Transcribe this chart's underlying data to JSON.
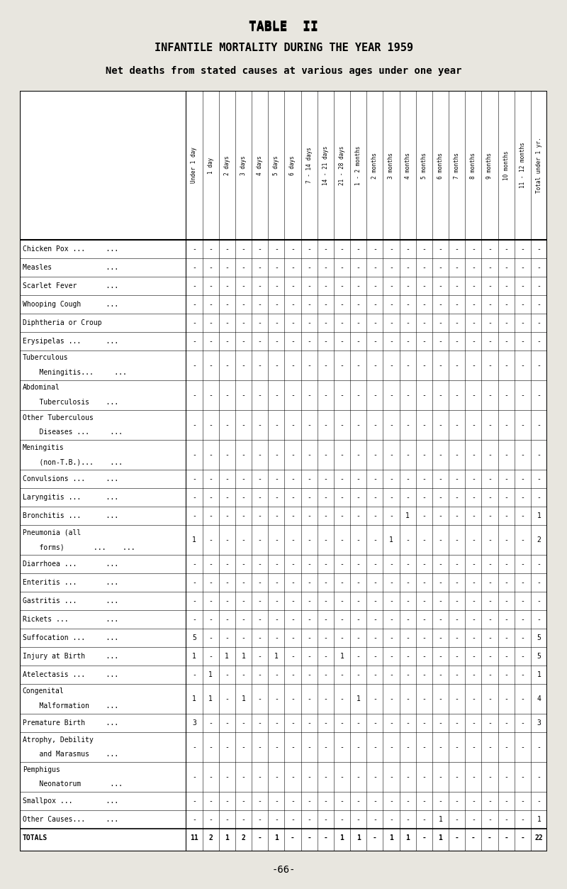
{
  "title1": "TABLE  II",
  "title2": "INFANTILE MORTALITY DURING THE YEAR 1959",
  "title3": "Net deaths from stated causes at various ages under one year",
  "bg_color": "#e8e6df",
  "col_headers": [
    "Under 1 day",
    "1 day",
    "2 days",
    "3 days",
    "4 days",
    "5 days",
    "6 days",
    "7 - 14 days",
    "14 - 21 days",
    "21 - 28 days",
    "1 - 2 months",
    "2 months",
    "3 months",
    "4 months",
    "5 months",
    "6 months",
    "7 months",
    "8 months",
    "9 months",
    "10 months",
    "11 - 12 months",
    "Total under 1 yr."
  ],
  "row_labels": [
    [
      "Chicken Pox ...",
      "        ..."
    ],
    [
      "Measles",
      "        ..."
    ],
    [
      "Scarlet Fever",
      "        ..."
    ],
    [
      "Whooping Cough",
      "        ..."
    ],
    [
      "Diphtheria or Croup",
      ""
    ],
    [
      "Erysipelas ...",
      "        ..."
    ],
    [
      "Tuberculous",
      "    Meningitis...",
      "        ..."
    ],
    [
      "Abdominal",
      "    Tuberculosis",
      "        ..."
    ],
    [
      "Other Tuberculous",
      "    Diseases ...",
      "        ..."
    ],
    [
      "Meningitis",
      "    (non-T.B.)...",
      "        ..."
    ],
    [
      "Convulsions ...",
      "        ..."
    ],
    [
      "Laryngitis ...",
      "        ..."
    ],
    [
      "Bronchitis ...",
      "        ..."
    ],
    [
      "Pneumonia (all",
      "    forms)",
      "        ..."
    ],
    [
      "Diarrhoea ...",
      "        ..."
    ],
    [
      "Enteritis ...",
      "        ..."
    ],
    [
      "Gastritis ...",
      "        ..."
    ],
    [
      "Rickets ...",
      "        ..."
    ],
    [
      "Suffocation ...",
      "        ..."
    ],
    [
      "Injury at Birth",
      "        ..."
    ],
    [
      "Atelectasis ...",
      "        ..."
    ],
    [
      "Congenital",
      "    Malformation",
      "        ..."
    ],
    [
      "Premature Birth",
      "        ..."
    ],
    [
      "Atrophy, Debility",
      "    and Marasmus",
      "        ..."
    ],
    [
      "Pemphigus",
      "    Neonatorum",
      "        ..."
    ],
    [
      "Smallpox ...",
      "        ..."
    ],
    [
      "Other Causes...",
      "        ..."
    ],
    [
      "TOTALS",
      ""
    ]
  ],
  "row_display": [
    "Chicken Pox ...     ...",
    "Measles             ...",
    "Scarlet Fever       ...",
    "Whooping Cough      ...",
    "Diphtheria or Croup",
    "Erysipelas ...      ...",
    "Tuberculous|    Meningitis...     ...",
    "Abdominal|    Tuberculosis    ...",
    "Other Tuberculous|    Diseases ...     ...",
    "Meningitis|    (non-T.B.)...    ...",
    "Convulsions ...     ...",
    "Laryngitis ...      ...",
    "Bronchitis ...      ...",
    "Pneumonia (all|    forms)       ...    ...",
    "Diarrhoea ...       ...",
    "Enteritis ...       ...",
    "Gastritis ...       ...",
    "Rickets ...         ...",
    "Suffocation ...     ...",
    "Injury at Birth     ...",
    "Atelectasis ...     ...",
    "Congenital|    Malformation    ...",
    "Premature Birth     ...",
    "Atrophy, Debility|    and Marasmus    ...",
    "Pemphigus|    Neonatorum       ...",
    "Smallpox ...        ...",
    "Other Causes...     ...",
    "TOTALS"
  ],
  "data": [
    [
      "-",
      "-",
      "-",
      "-",
      "-",
      "-",
      "-",
      "-",
      "-",
      "-",
      "-",
      "-",
      "-",
      "-",
      "-",
      "-",
      "-",
      "-",
      "-",
      "-",
      "-",
      "-"
    ],
    [
      "-",
      "-",
      "-",
      "-",
      "-",
      "-",
      "-",
      "-",
      "-",
      "-",
      "-",
      "-",
      "-",
      "-",
      "-",
      "-",
      "-",
      "-",
      "-",
      "-",
      "-",
      "-"
    ],
    [
      "-",
      "-",
      "-",
      "-",
      "-",
      "-",
      "-",
      "-",
      "-",
      "-",
      "-",
      "-",
      "-",
      "-",
      "-",
      "-",
      "-",
      "-",
      "-",
      "-",
      "-",
      "-"
    ],
    [
      "-",
      "-",
      "-",
      "-",
      "-",
      "-",
      "-",
      "-",
      "-",
      "-",
      "-",
      "-",
      "-",
      "-",
      "-",
      "-",
      "-",
      "-",
      "-",
      "-",
      "-",
      "-"
    ],
    [
      "-",
      "-",
      "-",
      "-",
      "-",
      "-",
      "-",
      "-",
      "-",
      "-",
      "-",
      "-",
      "-",
      "-",
      "-",
      "-",
      "-",
      "-",
      "-",
      "-",
      "-",
      "-"
    ],
    [
      "-",
      "-",
      "-",
      "-",
      "-",
      "-",
      "-",
      "-",
      "-",
      "-",
      "-",
      "-",
      "-",
      "-",
      "-",
      "-",
      "-",
      "-",
      "-",
      "-",
      "-",
      "-"
    ],
    [
      "-",
      "-",
      "-",
      "-",
      "-",
      "-",
      "-",
      "-",
      "-",
      "-",
      "-",
      "-",
      "-",
      "-",
      "-",
      "-",
      "-",
      "-",
      "-",
      "-",
      "-",
      "-"
    ],
    [
      "-",
      "-",
      "-",
      "-",
      "-",
      "-",
      "-",
      "-",
      "-",
      "-",
      "-",
      "-",
      "-",
      "-",
      "-",
      "-",
      "-",
      "-",
      "-",
      "-",
      "-",
      "-"
    ],
    [
      "-",
      "-",
      "-",
      "-",
      "-",
      "-",
      "-",
      "-",
      "-",
      "-",
      "-",
      "-",
      "-",
      "-",
      "-",
      "-",
      "-",
      "-",
      "-",
      "-",
      "-",
      "-"
    ],
    [
      "-",
      "-",
      "-",
      "-",
      "-",
      "-",
      "-",
      "-",
      "-",
      "-",
      "-",
      "-",
      "-",
      "-",
      "-",
      "-",
      "-",
      "-",
      "-",
      "-",
      "-",
      "-"
    ],
    [
      "-",
      "-",
      "-",
      "-",
      "-",
      "-",
      "-",
      "-",
      "-",
      "-",
      "-",
      "-",
      "-",
      "-",
      "-",
      "-",
      "-",
      "-",
      "-",
      "-",
      "-",
      "-"
    ],
    [
      "-",
      "-",
      "-",
      "-",
      "-",
      "-",
      "-",
      "-",
      "-",
      "-",
      "-",
      "-",
      "-",
      "-",
      "-",
      "-",
      "-",
      "-",
      "-",
      "-",
      "-",
      "-"
    ],
    [
      "-",
      "-",
      "-",
      "-",
      "-",
      "-",
      "-",
      "-",
      "-",
      "-",
      "-",
      "-",
      "-",
      "1",
      "-",
      "-",
      "-",
      "-",
      "-",
      "-",
      "-",
      "1"
    ],
    [
      "1",
      "-",
      "-",
      "-",
      "-",
      "-",
      "-",
      "-",
      "-",
      "-",
      "-",
      "-",
      "1",
      "-",
      "-",
      "-",
      "-",
      "-",
      "-",
      "-",
      "-",
      "2"
    ],
    [
      "-",
      "-",
      "-",
      "-",
      "-",
      "-",
      "-",
      "-",
      "-",
      "-",
      "-",
      "-",
      "-",
      "-",
      "-",
      "-",
      "-",
      "-",
      "-",
      "-",
      "-",
      "-"
    ],
    [
      "-",
      "-",
      "-",
      "-",
      "-",
      "-",
      "-",
      "-",
      "-",
      "-",
      "-",
      "-",
      "-",
      "-",
      "-",
      "-",
      "-",
      "-",
      "-",
      "-",
      "-",
      "-"
    ],
    [
      "-",
      "-",
      "-",
      "-",
      "-",
      "-",
      "-",
      "-",
      "-",
      "-",
      "-",
      "-",
      "-",
      "-",
      "-",
      "-",
      "-",
      "-",
      "-",
      "-",
      "-",
      "-"
    ],
    [
      "-",
      "-",
      "-",
      "-",
      "-",
      "-",
      "-",
      "-",
      "-",
      "-",
      "-",
      "-",
      "-",
      "-",
      "-",
      "-",
      "-",
      "-",
      "-",
      "-",
      "-",
      "-"
    ],
    [
      "5",
      "-",
      "-",
      "-",
      "-",
      "-",
      "-",
      "-",
      "-",
      "-",
      "-",
      "-",
      "-",
      "-",
      "-",
      "-",
      "-",
      "-",
      "-",
      "-",
      "-",
      "5"
    ],
    [
      "1",
      "-",
      "1",
      "1",
      "-",
      "1",
      "-",
      "-",
      "-",
      "1",
      "-",
      "-",
      "-",
      "-",
      "-",
      "-",
      "-",
      "-",
      "-",
      "-",
      "-",
      "5"
    ],
    [
      "-",
      "1",
      "-",
      "-",
      "-",
      "-",
      "-",
      "-",
      "-",
      "-",
      "-",
      "-",
      "-",
      "-",
      "-",
      "-",
      "-",
      "-",
      "-",
      "-",
      "-",
      "1"
    ],
    [
      "1",
      "1",
      "-",
      "1",
      "-",
      "-",
      "-",
      "-",
      "-",
      "-",
      "1",
      "-",
      "-",
      "-",
      "-",
      "-",
      "-",
      "-",
      "-",
      "-",
      "-",
      "4"
    ],
    [
      "3",
      "-",
      "-",
      "-",
      "-",
      "-",
      "-",
      "-",
      "-",
      "-",
      "-",
      "-",
      "-",
      "-",
      "-",
      "-",
      "-",
      "-",
      "-",
      "-",
      "-",
      "3"
    ],
    [
      "-",
      "-",
      "-",
      "-",
      "-",
      "-",
      "-",
      "-",
      "-",
      "-",
      "-",
      "-",
      "-",
      "-",
      "-",
      "-",
      "-",
      "-",
      "-",
      "-",
      "-",
      "-"
    ],
    [
      "-",
      "-",
      "-",
      "-",
      "-",
      "-",
      "-",
      "-",
      "-",
      "-",
      "-",
      "-",
      "-",
      "-",
      "-",
      "-",
      "-",
      "-",
      "-",
      "-",
      "-",
      "-"
    ],
    [
      "-",
      "-",
      "-",
      "-",
      "-",
      "-",
      "-",
      "-",
      "-",
      "-",
      "-",
      "-",
      "-",
      "-",
      "-",
      "-",
      "-",
      "-",
      "-",
      "-",
      "-",
      "-"
    ],
    [
      "-",
      "-",
      "-",
      "-",
      "-",
      "-",
      "-",
      "-",
      "-",
      "-",
      "-",
      "-",
      "-",
      "-",
      "-",
      "1",
      "-",
      "-",
      "-",
      "-",
      "-",
      "1"
    ],
    [
      "11",
      "2",
      "1",
      "2",
      "-",
      "1",
      "-",
      "-",
      "-",
      "1",
      "1",
      "-",
      "1",
      "1",
      "-",
      "1",
      "-",
      "-",
      "-",
      "-",
      "-",
      "22"
    ]
  ],
  "double_row_indices": [
    6,
    7,
    8,
    9,
    13,
    21,
    23,
    24
  ],
  "font_size_header": 5.5,
  "font_size_data": 7.0,
  "font_size_title1": 13,
  "font_size_title2": 11,
  "font_size_title3": 10
}
